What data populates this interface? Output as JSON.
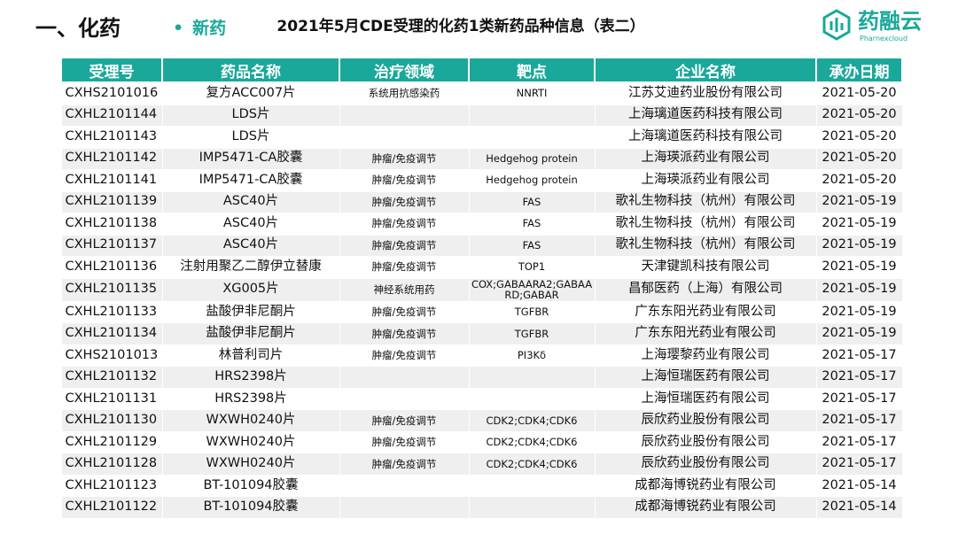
{
  "header": {
    "section": "一、化药",
    "subsection": "新药",
    "title": "2021年5月CDE受理的化药1类新药品种信息（表二）",
    "logo": {
      "name": "药融云",
      "subtitle": "Pharnexcloud"
    }
  },
  "table": {
    "columns": [
      "受理号",
      "药品名称",
      "治疗领域",
      "靶点",
      "企业名称",
      "承办日期"
    ],
    "rows": [
      [
        "CXHS2101016",
        "复方ACC007片",
        "系统用抗感染药",
        "NNRTI",
        "江苏艾迪药业股份有限公司",
        "2021-05-20"
      ],
      [
        "CXHL2101144",
        "LDS片",
        null,
        null,
        "上海璃道医药科技有限公司",
        "2021-05-20"
      ],
      [
        "CXHL2101143",
        "LDS片",
        null,
        null,
        "上海璃道医药科技有限公司",
        "2021-05-20"
      ],
      [
        "CXHL2101142",
        "IMP5471-CA胶囊",
        "肿瘤/免疫调节",
        "Hedgehog protein",
        "上海瑛派药业有限公司",
        "2021-05-20"
      ],
      [
        "CXHL2101141",
        "IMP5471-CA胶囊",
        "肿瘤/免疫调节",
        "Hedgehog protein",
        "上海瑛派药业有限公司",
        "2021-05-20"
      ],
      [
        "CXHL2101139",
        "ASC40片",
        "肿瘤/免疫调节",
        "FAS",
        "歌礼生物科技（杭州）有限公司",
        "2021-05-19"
      ],
      [
        "CXHL2101138",
        "ASC40片",
        "肿瘤/免疫调节",
        "FAS",
        "歌礼生物科技（杭州）有限公司",
        "2021-05-19"
      ],
      [
        "CXHL2101137",
        "ASC40片",
        "肿瘤/免疫调节",
        "FAS",
        "歌礼生物科技（杭州）有限公司",
        "2021-05-19"
      ],
      [
        "CXHL2101136",
        "注射用聚乙二醇伊立替康",
        "肿瘤/免疫调节",
        "TOP1",
        "天津键凯科技有限公司",
        "2021-05-19"
      ],
      [
        "CXHL2101135",
        "XG005片",
        "神经系统用药",
        "COX;GABAARA2;GABAARD;GABAR",
        "昌郁医药（上海）有限公司",
        "2021-05-19"
      ],
      [
        "CXHL2101133",
        "盐酸伊非尼酮片",
        "肿瘤/免疫调节",
        "TGFBR",
        "广东东阳光药业有限公司",
        "2021-05-19"
      ],
      [
        "CXHL2101134",
        "盐酸伊非尼酮片",
        "肿瘤/免疫调节",
        "TGFBR",
        "广东东阳光药业有限公司",
        "2021-05-19"
      ],
      [
        "CXHS2101013",
        "林普利司片",
        "肿瘤/免疫调节",
        "PI3Kδ",
        "上海璎黎药业有限公司",
        "2021-05-17"
      ],
      [
        "CXHL2101132",
        "HRS2398片",
        null,
        null,
        "上海恒瑞医药有限公司",
        "2021-05-17"
      ],
      [
        "CXHL2101131",
        "HRS2398片",
        null,
        null,
        "上海恒瑞医药有限公司",
        "2021-05-17"
      ],
      [
        "CXHL2101130",
        "WXWH0240片",
        "肿瘤/免疫调节",
        "CDK2;CDK4;CDK6",
        "辰欣药业股份有限公司",
        "2021-05-17"
      ],
      [
        "CXHL2101129",
        "WXWH0240片",
        "肿瘤/免疫调节",
        "CDK2;CDK4;CDK6",
        "辰欣药业股份有限公司",
        "2021-05-17"
      ],
      [
        "CXHL2101128",
        "WXWH0240片",
        "肿瘤/免疫调节",
        "CDK2;CDK4;CDK6",
        "辰欣药业股份有限公司",
        "2021-05-17"
      ],
      [
        "CXHL2101123",
        "BT-101094胶囊",
        null,
        null,
        "成都海博锐药业有限公司",
        "2021-05-14"
      ],
      [
        "CXHL2101122",
        "BT-101094胶囊",
        null,
        null,
        "成都海博锐药业有限公司",
        "2021-05-14"
      ]
    ]
  }
}
